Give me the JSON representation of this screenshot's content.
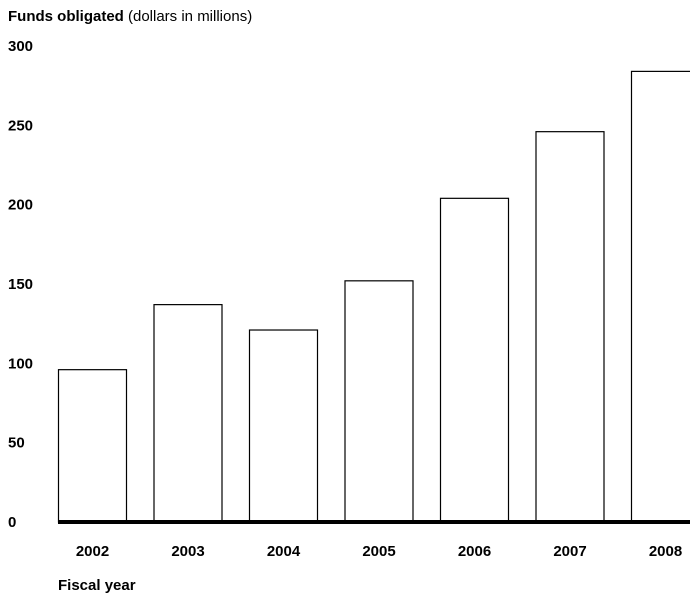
{
  "chart_data": {
    "type": "bar",
    "title": "Funds obligated",
    "title_suffix": " (dollars in millions)",
    "xlabel": "Fiscal year",
    "ylabel": "",
    "categories": [
      "2002",
      "2003",
      "2004",
      "2005",
      "2006",
      "2007",
      "2008"
    ],
    "values": [
      96,
      137,
      121,
      152,
      204,
      246,
      284
    ],
    "ylim": [
      0,
      300
    ],
    "yticks": [
      0,
      50,
      100,
      150,
      200,
      250,
      300
    ],
    "grid": false,
    "bar_fill": "#ffffff",
    "bar_stroke": "#000000",
    "axis_color": "#000000"
  }
}
